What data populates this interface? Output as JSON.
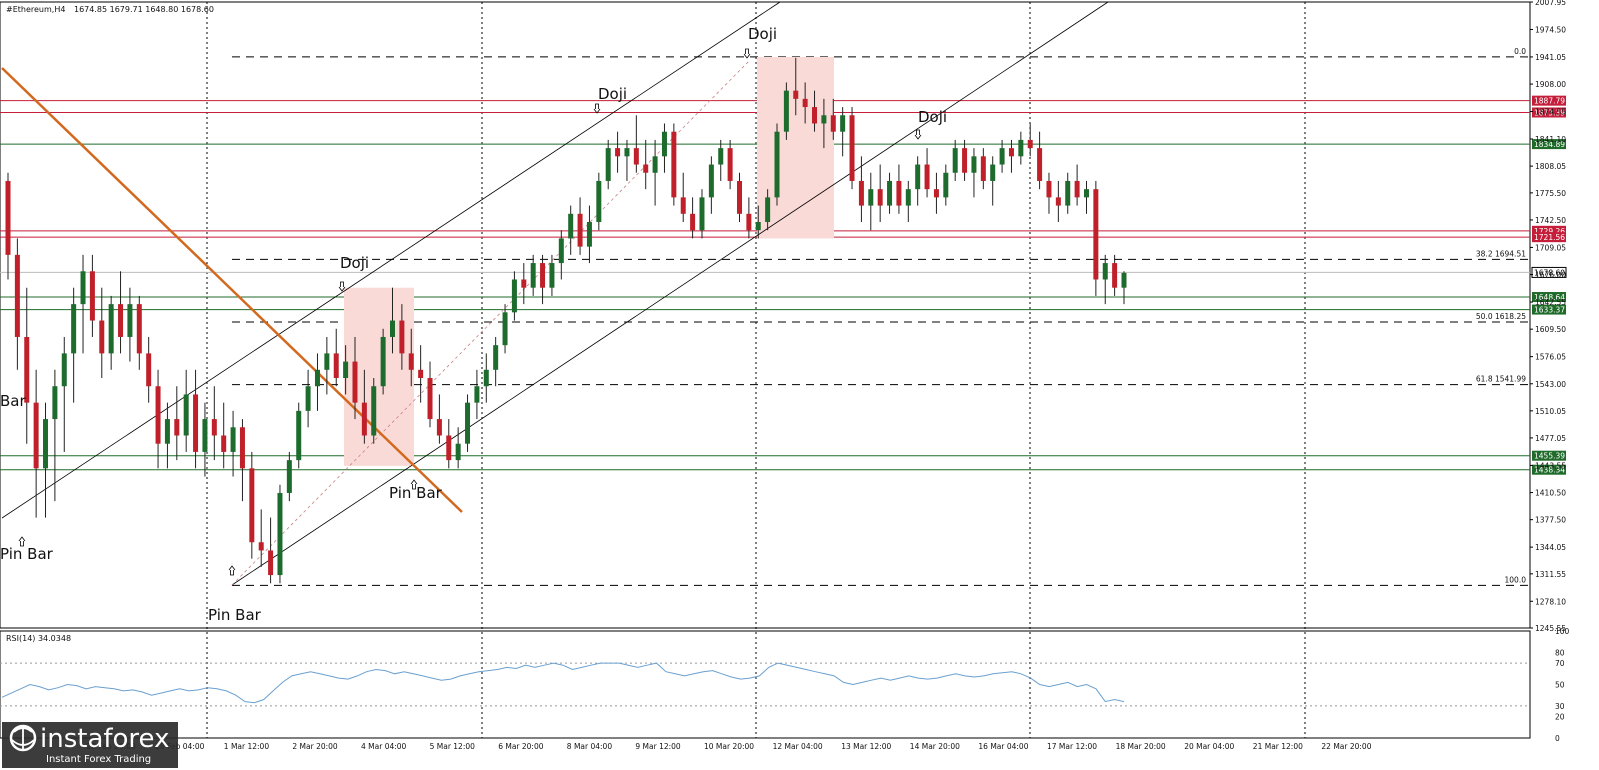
{
  "header": {
    "symbol": "#Ethereum,H4",
    "ohlc": "1674.85 1679.71 1648.80 1678.60"
  },
  "rsi_header": "RSI(14) 34.0348",
  "logo": {
    "name": "instaforex",
    "tagline": "Instant Forex Trading"
  },
  "annotations": [
    "Doji",
    "Doji",
    "Doji",
    "Doji",
    "Pin Bar",
    "Pin Bar",
    "Pin Bar",
    "Bar"
  ],
  "fib_labels": [
    "0.0",
    "38.2 1694.51",
    "50.0 1618.25",
    "61.8 1541.99",
    "100.0"
  ],
  "price_tags": [
    {
      "text": "1887.79",
      "color": "#c41e3a"
    },
    {
      "text": "1873.39",
      "color": "#c41e3a"
    },
    {
      "text": "1834.89",
      "color": "#1f6b2a"
    },
    {
      "text": "1729.26",
      "color": "#c41e3a"
    },
    {
      "text": "1721.56",
      "color": "#c41e3a"
    },
    {
      "text": "1678.60",
      "color": "#ffffff"
    },
    {
      "text": "1648.64",
      "color": "#1f6b2a"
    },
    {
      "text": "1633.37",
      "color": "#1f6b2a"
    },
    {
      "text": "1455.39",
      "color": "#1f6b2a"
    },
    {
      "text": "1438.34",
      "color": "#1f6b2a"
    }
  ],
  "colors": {
    "bull": "#1e6b2e",
    "bear": "#c0202a",
    "resistance": "#c41e3a",
    "support": "#1f6b2a",
    "trendline": "#d2691e",
    "rsi_line": "#6aa0d0",
    "box_fill": "#fadad7"
  },
  "chart_data": [
    {
      "type": "candlestick",
      "title": "#Ethereum,H4",
      "ylim": [
        1245.55,
        2007.95
      ],
      "y_ticks": [
        "2007.95",
        "1974.50",
        "1941.05",
        "1908.00",
        "1874.55",
        "1841.10",
        "1808.05",
        "1775.50",
        "1742.50",
        "1709.05",
        "1676.00",
        "1642.55",
        "1609.50",
        "1576.05",
        "1543.00",
        "1510.05",
        "1477.05",
        "1443.55",
        "1410.50",
        "1377.50",
        "1344.05",
        "1311.55",
        "1278.10",
        "1245.55"
      ],
      "x_ticks": [
        "",
        "26 Feb 20:00",
        "28 Feb 04:00",
        "1 Mar 12:00",
        "2 Mar 20:00",
        "4 Mar 04:00",
        "5 Mar 12:00",
        "6 Mar 20:00",
        "8 Mar 04:00",
        "9 Mar 12:00",
        "10 Mar 20:00",
        "12 Mar 04:00",
        "13 Mar 12:00",
        "14 Mar 20:00",
        "16 Mar 04:00",
        "17 Mar 12:00",
        "18 Mar 20:00",
        "20 Mar 04:00",
        "21 Mar 12:00",
        "22 Mar 20:00"
      ],
      "horizontal_levels": [
        {
          "price": 1887.79,
          "kind": "resistance"
        },
        {
          "price": 1873.39,
          "kind": "resistance"
        },
        {
          "price": 1834.89,
          "kind": "support"
        },
        {
          "price": 1729.26,
          "kind": "resistance"
        },
        {
          "price": 1721.56,
          "kind": "resistance"
        },
        {
          "price": 1678.6,
          "kind": "current"
        },
        {
          "price": 1648.64,
          "kind": "support"
        },
        {
          "price": 1633.37,
          "kind": "support"
        },
        {
          "price": 1455.39,
          "kind": "support"
        },
        {
          "price": 1438.34,
          "kind": "support"
        }
      ],
      "fibonacci": [
        {
          "level": "0.0",
          "price": 1941.05
        },
        {
          "level": "38.2",
          "price": 1694.51
        },
        {
          "level": "50.0",
          "price": 1618.25
        },
        {
          "level": "61.8",
          "price": 1541.99
        },
        {
          "level": "100.0",
          "price": 1297.5
        }
      ],
      "candles": [
        [
          1790,
          1800,
          1670,
          1700
        ],
        [
          1700,
          1720,
          1560,
          1600
        ],
        [
          1600,
          1660,
          1470,
          1520
        ],
        [
          1520,
          1560,
          1380,
          1440
        ],
        [
          1440,
          1520,
          1380,
          1500
        ],
        [
          1500,
          1560,
          1400,
          1540
        ],
        [
          1540,
          1600,
          1460,
          1580
        ],
        [
          1580,
          1660,
          1520,
          1640
        ],
        [
          1640,
          1700,
          1580,
          1680
        ],
        [
          1680,
          1700,
          1600,
          1620
        ],
        [
          1620,
          1660,
          1550,
          1580
        ],
        [
          1580,
          1650,
          1560,
          1640
        ],
        [
          1640,
          1680,
          1580,
          1600
        ],
        [
          1600,
          1660,
          1570,
          1640
        ],
        [
          1640,
          1650,
          1560,
          1580
        ],
        [
          1580,
          1600,
          1520,
          1540
        ],
        [
          1540,
          1560,
          1440,
          1470
        ],
        [
          1470,
          1520,
          1440,
          1500
        ],
        [
          1500,
          1540,
          1450,
          1480
        ],
        [
          1480,
          1560,
          1460,
          1530
        ],
        [
          1530,
          1560,
          1440,
          1460
        ],
        [
          1460,
          1520,
          1430,
          1500
        ],
        [
          1500,
          1540,
          1450,
          1480
        ],
        [
          1480,
          1520,
          1440,
          1460
        ],
        [
          1460,
          1510,
          1430,
          1490
        ],
        [
          1490,
          1500,
          1400,
          1440
        ],
        [
          1440,
          1460,
          1330,
          1350
        ],
        [
          1350,
          1390,
          1320,
          1340
        ],
        [
          1340,
          1380,
          1300,
          1310
        ],
        [
          1310,
          1420,
          1300,
          1410
        ],
        [
          1410,
          1460,
          1400,
          1450
        ],
        [
          1450,
          1520,
          1440,
          1510
        ],
        [
          1510,
          1560,
          1490,
          1540
        ],
        [
          1540,
          1580,
          1510,
          1560
        ],
        [
          1560,
          1600,
          1530,
          1580
        ],
        [
          1580,
          1610,
          1540,
          1550
        ],
        [
          1550,
          1590,
          1530,
          1570
        ],
        [
          1570,
          1600,
          1500,
          1520
        ],
        [
          1520,
          1560,
          1470,
          1480
        ],
        [
          1480,
          1550,
          1470,
          1540
        ],
        [
          1540,
          1610,
          1530,
          1600
        ],
        [
          1600,
          1660,
          1580,
          1620
        ],
        [
          1620,
          1640,
          1560,
          1580
        ],
        [
          1580,
          1610,
          1540,
          1560
        ],
        [
          1560,
          1590,
          1520,
          1550
        ],
        [
          1550,
          1570,
          1490,
          1500
        ],
        [
          1500,
          1530,
          1470,
          1480
        ],
        [
          1480,
          1500,
          1440,
          1450
        ],
        [
          1450,
          1490,
          1440,
          1470
        ],
        [
          1470,
          1530,
          1460,
          1520
        ],
        [
          1520,
          1560,
          1500,
          1540
        ],
        [
          1540,
          1580,
          1520,
          1560
        ],
        [
          1560,
          1600,
          1540,
          1590
        ],
        [
          1590,
          1640,
          1580,
          1630
        ],
        [
          1630,
          1680,
          1620,
          1670
        ],
        [
          1670,
          1690,
          1640,
          1660
        ],
        [
          1660,
          1700,
          1650,
          1690
        ],
        [
          1690,
          1700,
          1640,
          1660
        ],
        [
          1660,
          1700,
          1650,
          1690
        ],
        [
          1690,
          1730,
          1670,
          1720
        ],
        [
          1720,
          1760,
          1700,
          1750
        ],
        [
          1750,
          1770,
          1700,
          1710
        ],
        [
          1710,
          1760,
          1690,
          1740
        ],
        [
          1740,
          1800,
          1730,
          1790
        ],
        [
          1790,
          1840,
          1780,
          1830
        ],
        [
          1830,
          1850,
          1800,
          1820
        ],
        [
          1820,
          1840,
          1790,
          1830
        ],
        [
          1830,
          1870,
          1800,
          1810
        ],
        [
          1810,
          1840,
          1780,
          1800
        ],
        [
          1800,
          1840,
          1760,
          1820
        ],
        [
          1820,
          1860,
          1800,
          1850
        ],
        [
          1850,
          1860,
          1760,
          1770
        ],
        [
          1770,
          1800,
          1740,
          1750
        ],
        [
          1750,
          1770,
          1720,
          1730
        ],
        [
          1730,
          1780,
          1720,
          1770
        ],
        [
          1770,
          1820,
          1750,
          1810
        ],
        [
          1810,
          1840,
          1790,
          1830
        ],
        [
          1830,
          1840,
          1780,
          1790
        ],
        [
          1790,
          1800,
          1740,
          1750
        ],
        [
          1750,
          1770,
          1720,
          1730
        ],
        [
          1730,
          1760,
          1720,
          1740
        ],
        [
          1740,
          1780,
          1730,
          1770
        ],
        [
          1770,
          1860,
          1760,
          1850
        ],
        [
          1850,
          1910,
          1840,
          1900
        ],
        [
          1900,
          1940,
          1870,
          1890
        ],
        [
          1890,
          1910,
          1860,
          1880
        ],
        [
          1880,
          1900,
          1850,
          1860
        ],
        [
          1860,
          1890,
          1830,
          1870
        ],
        [
          1870,
          1890,
          1840,
          1850
        ],
        [
          1850,
          1880,
          1820,
          1870
        ],
        [
          1870,
          1880,
          1780,
          1790
        ],
        [
          1790,
          1820,
          1740,
          1760
        ],
        [
          1760,
          1800,
          1730,
          1780
        ],
        [
          1780,
          1810,
          1740,
          1760
        ],
        [
          1760,
          1800,
          1750,
          1790
        ],
        [
          1790,
          1810,
          1750,
          1760
        ],
        [
          1760,
          1790,
          1740,
          1780
        ],
        [
          1780,
          1820,
          1760,
          1810
        ],
        [
          1810,
          1830,
          1770,
          1780
        ],
        [
          1780,
          1800,
          1750,
          1770
        ],
        [
          1770,
          1810,
          1760,
          1800
        ],
        [
          1800,
          1840,
          1790,
          1830
        ],
        [
          1830,
          1840,
          1790,
          1800
        ],
        [
          1800,
          1830,
          1770,
          1820
        ],
        [
          1820,
          1830,
          1780,
          1790
        ],
        [
          1790,
          1820,
          1760,
          1810
        ],
        [
          1810,
          1840,
          1800,
          1830
        ],
        [
          1830,
          1840,
          1800,
          1820
        ],
        [
          1820,
          1850,
          1810,
          1840
        ],
        [
          1840,
          1860,
          1820,
          1830
        ],
        [
          1830,
          1850,
          1780,
          1790
        ],
        [
          1790,
          1800,
          1750,
          1770
        ],
        [
          1770,
          1790,
          1740,
          1760
        ],
        [
          1760,
          1800,
          1750,
          1790
        ],
        [
          1790,
          1810,
          1760,
          1770
        ],
        [
          1770,
          1790,
          1750,
          1780
        ],
        [
          1780,
          1790,
          1650,
          1670
        ],
        [
          1670,
          1700,
          1640,
          1690
        ],
        [
          1690,
          1700,
          1650,
          1660
        ],
        [
          1660,
          1680,
          1640,
          1678
        ]
      ]
    },
    {
      "type": "line",
      "title": "RSI(14) 34.0348",
      "ylim": [
        0,
        100
      ],
      "y_ticks": [
        "100",
        "80",
        "70",
        "50",
        "30",
        "20",
        "0"
      ],
      "values": [
        38,
        42,
        46,
        50,
        48,
        45,
        47,
        50,
        49,
        46,
        48,
        47,
        46,
        44,
        45,
        43,
        40,
        42,
        44,
        46,
        44,
        45,
        47,
        46,
        44,
        40,
        34,
        33,
        36,
        44,
        52,
        58,
        60,
        62,
        60,
        58,
        56,
        55,
        58,
        62,
        64,
        63,
        60,
        62,
        60,
        58,
        56,
        54,
        55,
        58,
        60,
        62,
        63,
        64,
        66,
        65,
        68,
        66,
        68,
        70,
        68,
        64,
        66,
        68,
        70,
        70,
        70,
        68,
        66,
        68,
        70,
        62,
        60,
        58,
        60,
        62,
        63,
        60,
        57,
        55,
        56,
        58,
        66,
        70,
        68,
        66,
        64,
        62,
        60,
        58,
        52,
        50,
        52,
        54,
        56,
        54,
        56,
        58,
        56,
        55,
        56,
        58,
        60,
        58,
        57,
        58,
        60,
        61,
        62,
        60,
        56,
        50,
        48,
        50,
        52,
        48,
        50,
        46,
        34,
        36,
        34
      ]
    }
  ]
}
